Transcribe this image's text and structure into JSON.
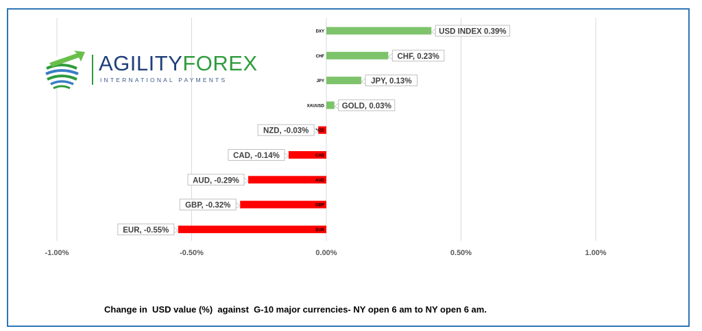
{
  "chart_data": {
    "type": "bar",
    "orientation": "horizontal",
    "categories": [
      "DXY",
      "CHF",
      "JPY",
      "XAUUSD",
      "NZD",
      "CAD",
      "AUD",
      "GBP",
      "EUR"
    ],
    "values": [
      0.39,
      0.23,
      0.13,
      0.03,
      -0.03,
      -0.14,
      -0.29,
      -0.32,
      -0.55
    ],
    "data_labels": [
      "USD INDEX 0.39%",
      "CHF, 0.23%",
      "JPY, 0.13%",
      "GOLD, 0.03%",
      "NZD, -0.03%",
      "CAD, -0.14%",
      "AUD, -0.29%",
      "GBP, -0.32%",
      "EUR, -0.55%"
    ],
    "x_ticks": [
      -1.0,
      -0.5,
      0.0,
      0.5,
      1.0
    ],
    "x_tick_labels": [
      "-1.00%",
      "-0.50%",
      "0.00%",
      "0.50%",
      "1.00%"
    ],
    "xlim": [
      -1.0,
      1.0
    ],
    "grid": "vertical",
    "colors": {
      "positive": "#7dc36b",
      "negative": "#ff0000",
      "grid": "#d9d9d9",
      "frame": "#2e75b6"
    }
  },
  "caption": "Change in  USD value (%)  against  G-10 major currencies- NY open 6 am to NY open 6 am.",
  "logo": {
    "word1": "AGILITY",
    "word2": "FOREX",
    "subtitle": "INTERNATIONAL PAYMENTS"
  }
}
